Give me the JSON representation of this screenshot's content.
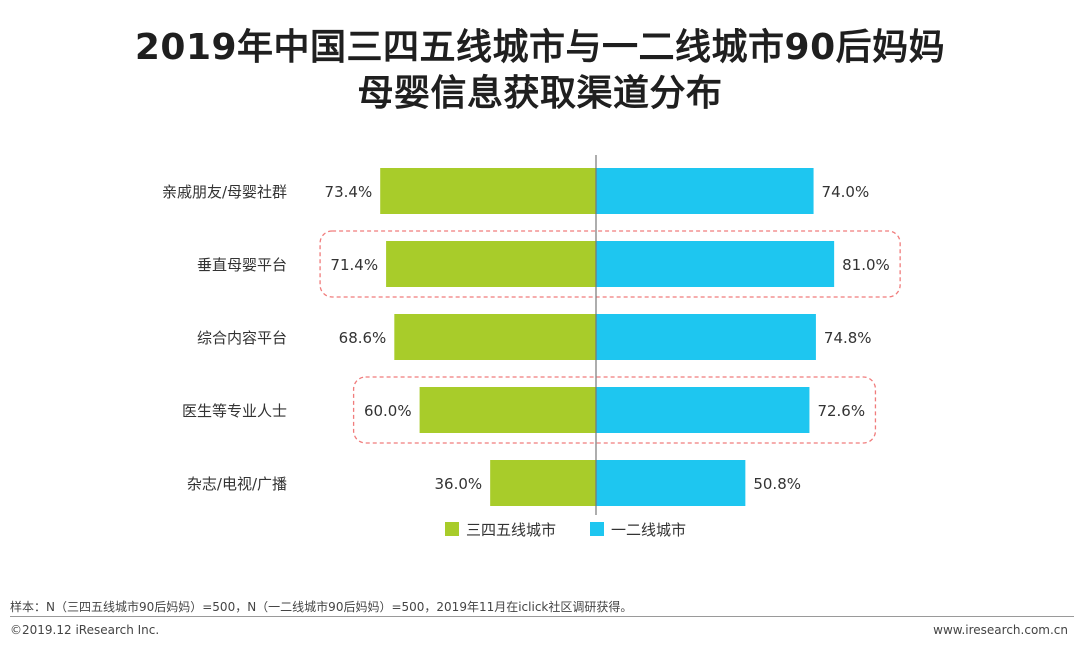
{
  "title": {
    "line1": "2019年中国三四五线城市与一二线城市90后妈妈",
    "line2": "母婴信息获取渠道分布"
  },
  "chart_data": {
    "type": "bar",
    "orientation": "diverging-horizontal",
    "categories": [
      "亲戚朋友/母婴社群",
      "垂直母婴平台",
      "综合内容平台",
      "医生等专业人士",
      "杂志/电视/广播"
    ],
    "series": [
      {
        "name": "三四五线城市",
        "values": [
          73.4,
          71.4,
          68.6,
          60.0,
          36.0
        ],
        "labels": [
          "73.4%",
          "71.4%",
          "68.6%",
          "60.0%",
          "36.0%"
        ],
        "color": "#a8cc2a"
      },
      {
        "name": "一二线城市",
        "values": [
          74.0,
          81.0,
          74.8,
          72.6,
          50.8
        ],
        "labels": [
          "74.0%",
          "81.0%",
          "74.8%",
          "72.6%",
          "50.8%"
        ],
        "color": "#1ec6f0"
      }
    ],
    "highlighted_categories": [
      "垂直母婴平台",
      "医生等专业人士"
    ],
    "highlight_color": "#f07c7c",
    "legend_position": "bottom",
    "xlim": [
      0,
      100
    ],
    "unit": "%"
  },
  "footer": {
    "note": "样本：N（三四五线城市90后妈妈）=500，N（一二线城市90后妈妈）=500，2019年11月在iclick社区调研获得。",
    "copyright": "©2019.12 iResearch Inc.",
    "website": "www.iresearch.com.cn"
  }
}
